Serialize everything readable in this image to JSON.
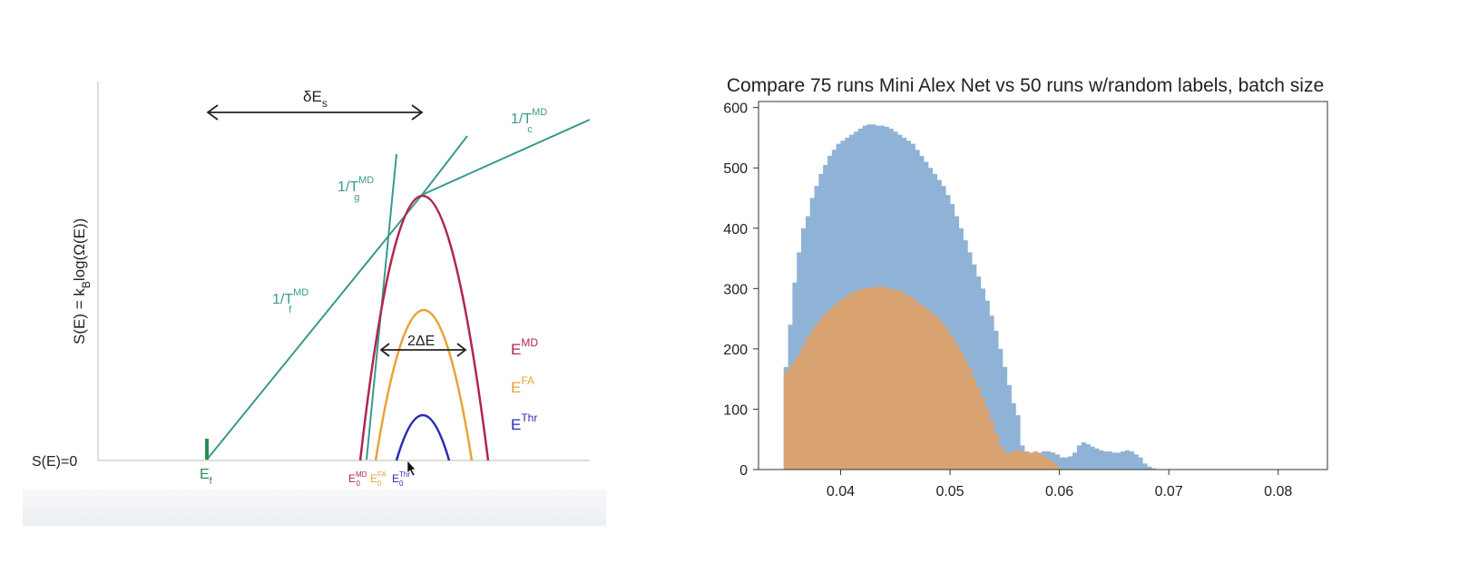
{
  "diagram": {
    "ylabel_main": "S(E) = k",
    "ylabel_sub": "B",
    "ylabel_rest": "log(Ω(E))",
    "baseline_label": "S(E)=0",
    "ef_main": "E",
    "ef_sub": "f",
    "delta_es_main": "δE",
    "delta_es_sub": "s",
    "two_delta_e": "2ΔE",
    "slope_c": {
      "main": "1/T",
      "sub": "c",
      "sup": "MD"
    },
    "slope_g": {
      "main": "1/T",
      "sub": "g",
      "sup": "MD"
    },
    "slope_f": {
      "main": "1/T",
      "sub": "f",
      "sup": "MD"
    },
    "legend": [
      {
        "main": "E",
        "sup": "MD",
        "color": "#b0264f"
      },
      {
        "main": "E",
        "sup": "FA",
        "color": "#e8a33a"
      },
      {
        "main": "E",
        "sup": "Thr",
        "color": "#2b2bb8"
      }
    ],
    "e0_labels": [
      {
        "main": "E",
        "sub": "0",
        "sup": "MD"
      },
      {
        "main": "E",
        "sub": "0",
        "sup": "FA"
      },
      {
        "main": "E",
        "sub": "0",
        "sup": "Thr"
      }
    ],
    "colors": {
      "teal": "#3a9a8e",
      "md": "#b0264f",
      "fa": "#e8a33a",
      "thr": "#2b2bb8"
    }
  },
  "chart_data": {
    "type": "bar",
    "title": "Compare 75 runs Mini Alex Net vs 50 runs w/random labels, batch size",
    "xlim": [
      0.0325,
      0.0845
    ],
    "ylim": [
      0,
      610
    ],
    "xticks": [
      0.04,
      0.05,
      0.06,
      0.07,
      0.08
    ],
    "xtick_labels": [
      "0.04",
      "0.05",
      "0.06",
      "0.07",
      "0.08"
    ],
    "yticks": [
      0,
      100,
      200,
      300,
      400,
      500,
      600
    ],
    "ytick_labels": [
      "0",
      "100",
      "200",
      "300",
      "400",
      "500",
      "600"
    ],
    "grid": false,
    "series": [
      {
        "color": "#8fb3d6",
        "x_start": 0.0348,
        "bin_width": 0.0004,
        "values": [
          170,
          240,
          310,
          360,
          400,
          420,
          450,
          470,
          490,
          505,
          520,
          530,
          540,
          545,
          550,
          555,
          560,
          565,
          570,
          572,
          572,
          570,
          570,
          568,
          565,
          560,
          555,
          550,
          545,
          540,
          530,
          520,
          510,
          500,
          490,
          480,
          470,
          455,
          440,
          420,
          400,
          380,
          360,
          340,
          320,
          300,
          280,
          255,
          230,
          200,
          170,
          140,
          110,
          90,
          40,
          30,
          25,
          25,
          28,
          30,
          30,
          28,
          25,
          20,
          20,
          22,
          28,
          40,
          45,
          42,
          38,
          35,
          32,
          30,
          30,
          28,
          28,
          30,
          32,
          30,
          25,
          20,
          10,
          5,
          2
        ]
      },
      {
        "color": "#d9a371",
        "x_start": 0.0348,
        "bin_width": 0.0004,
        "values": [
          160,
          170,
          180,
          190,
          205,
          220,
          230,
          240,
          250,
          258,
          265,
          272,
          278,
          283,
          288,
          292,
          296,
          298,
          300,
          302,
          302,
          303,
          303,
          302,
          300,
          298,
          296,
          292,
          288,
          284,
          278,
          272,
          268,
          262,
          256,
          250,
          240,
          230,
          220,
          208,
          196,
          182,
          168,
          152,
          136,
          118,
          100,
          80,
          60,
          40,
          30,
          28,
          30,
          32,
          30,
          30,
          28,
          30,
          26,
          22,
          18,
          12,
          6,
          2
        ]
      }
    ]
  }
}
